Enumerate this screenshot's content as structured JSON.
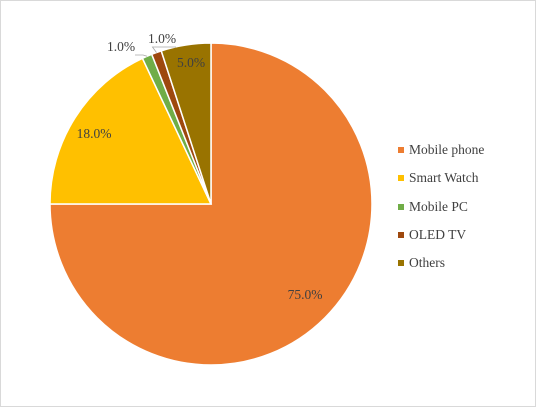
{
  "chart_data": {
    "type": "pie",
    "title": "",
    "legend_position": "right",
    "slices": [
      {
        "name": "Mobile phone",
        "value": 75.0,
        "label": "75.0%",
        "color": "#ED7D31"
      },
      {
        "name": "Smart Watch",
        "value": 18.0,
        "label": "18.0%",
        "color": "#FFC000"
      },
      {
        "name": "Mobile PC",
        "value": 1.0,
        "label": "1.0%",
        "color": "#70AD47"
      },
      {
        "name": "OLED TV",
        "value": 1.0,
        "label": "1.0%",
        "color": "#9E480E"
      },
      {
        "name": "Others",
        "value": 5.0,
        "label": "5.0%",
        "color": "#997300"
      }
    ]
  }
}
